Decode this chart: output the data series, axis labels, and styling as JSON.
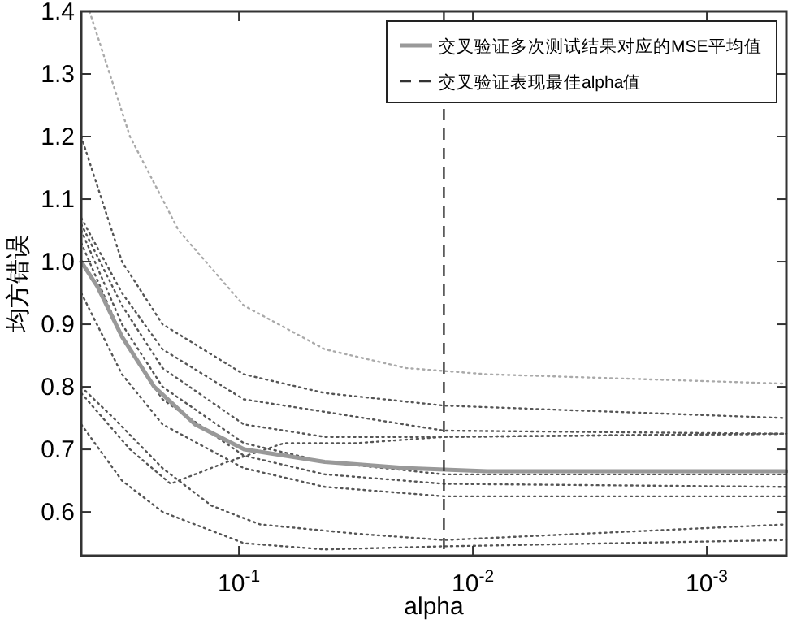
{
  "chart_data": {
    "type": "line",
    "xlabel": "alpha",
    "ylabel": "均方错误",
    "log": "x",
    "xlim": [
      0.472,
      0.000457
    ],
    "ylim": [
      0.53,
      1.4
    ],
    "xticks": [
      {
        "value": 0.1,
        "label": "10$^{-1}$"
      },
      {
        "value": 0.01,
        "label": "10$^{-2}$"
      },
      {
        "value": 0.001,
        "label": "10$^{-3}$"
      }
    ],
    "yticks": [
      0.6,
      0.7,
      0.8,
      0.9,
      {
        "value": 1.0,
        "label": "1.0"
      },
      1.1,
      1.2,
      1.3,
      1.4
    ],
    "grid": false,
    "legend": "top right",
    "x": [
      0.472,
      0.316,
      0.212,
      0.0953,
      0.0429,
      0.0133,
      0.000457
    ],
    "series": [
      {
        "color": "#aaaaaa",
        "line_style": "dotted",
        "x": [
          0.435,
          0.292,
          0.181,
          0.0953,
          0.0429,
          0.0193,
          0.00865,
          0.000457
        ],
        "values": [
          1.4,
          1.2,
          1.05,
          0.93,
          0.86,
          0.83,
          0.82,
          0.805
        ]
      },
      {
        "color": "#555555",
        "line_style": "dotted",
        "values": [
          1.2,
          1.0,
          0.9,
          0.82,
          0.79,
          0.77,
          0.75
        ]
      },
      {
        "color": "#555555",
        "line_style": "dotted",
        "values": [
          1.07,
          0.95,
          0.86,
          0.78,
          0.76,
          0.73,
          0.725
        ]
      },
      {
        "color": "#555555",
        "line_style": "dotted",
        "values": [
          1.06,
          0.93,
          0.83,
          0.74,
          0.72,
          0.72,
          0.725
        ]
      },
      {
        "color": "#555555",
        "line_style": "dotted",
        "values": [
          1.05,
          0.9,
          0.8,
          0.71,
          0.68,
          0.66,
          0.66
        ]
      },
      {
        "color": "#555555",
        "line_style": "dotted",
        "values": [
          1.03,
          0.88,
          0.78,
          0.69,
          0.66,
          0.645,
          0.64
        ]
      },
      {
        "color": "#555555",
        "line_style": "dotted",
        "values": [
          0.95,
          0.82,
          0.74,
          0.67,
          0.64,
          0.625,
          0.625
        ]
      },
      {
        "color": "#555555",
        "line_style": "dotted",
        "x": [
          0.472,
          0.343,
          0.212,
          0.131,
          0.0813,
          0.0311,
          0.0133,
          0.000457
        ],
        "values": [
          0.8,
          0.75,
          0.67,
          0.61,
          0.58,
          0.565,
          0.555,
          0.58
        ]
      },
      {
        "color": "#555555",
        "line_style": "dotted",
        "x": [
          0.472,
          0.292,
          0.196,
          0.112,
          0.064,
          0.0311,
          0.0133,
          0.000457
        ],
        "values": [
          0.79,
          0.7,
          0.645,
          0.68,
          0.71,
          0.71,
          0.72,
          0.725
        ]
      },
      {
        "color": "#555555",
        "line_style": "dotted",
        "values": [
          0.74,
          0.65,
          0.6,
          0.55,
          0.54,
          0.545,
          0.555
        ]
      },
      {
        "name": "交叉验证多次测试结果对应的MSE平均值",
        "color": "#999999",
        "line_style": "solid",
        "x": [
          0.472,
          0.402,
          0.316,
          0.23,
          0.154,
          0.095,
          0.043,
          0.019,
          0.0087,
          0.0017,
          0.000457
        ],
        "values": [
          1.0,
          0.96,
          0.88,
          0.8,
          0.74,
          0.7,
          0.68,
          0.67,
          0.665,
          0.665,
          0.665
        ]
      }
    ],
    "ref_lines": [
      {
        "axis": "x",
        "value": 0.0133,
        "label": "交叉验证表现最佳alpha值",
        "color": "#333333",
        "line_style": "dashed"
      }
    ]
  }
}
